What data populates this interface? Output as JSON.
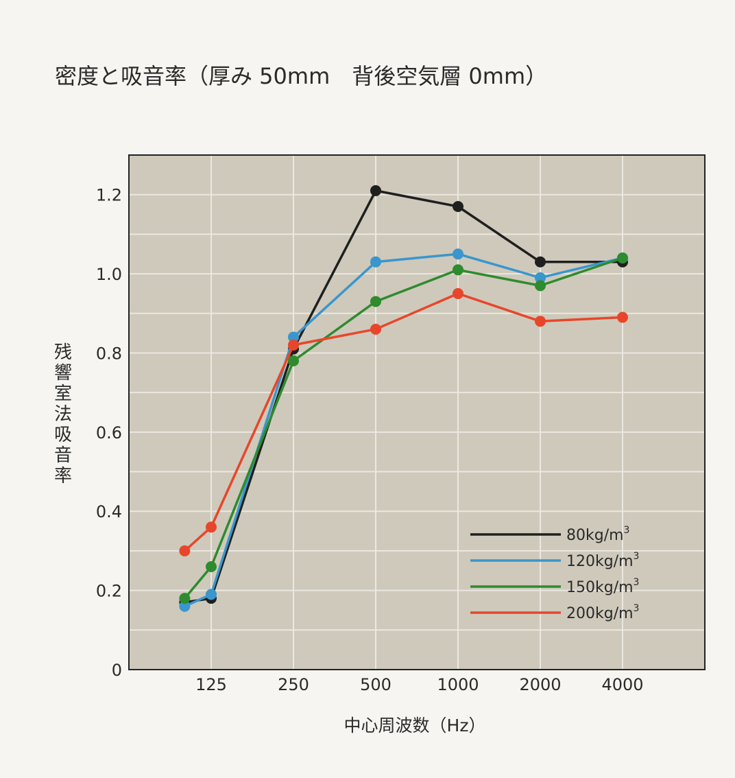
{
  "chart_data": {
    "type": "line",
    "title": "密度と吸音率（厚み 50mm　背後空気層 0mm）",
    "xlabel": "中心周波数（Hz）",
    "ylabel": "残響室法吸音率",
    "categories": [
      "125",
      "250",
      "500",
      "1000",
      "2000",
      "4000"
    ],
    "ylim": [
      0,
      1.3
    ],
    "yticks": [
      "0",
      "0.2",
      "0.4",
      "0.6",
      "0.8",
      "1.0",
      "1.2"
    ],
    "grid": true,
    "legend_position": "bottom-right",
    "series": [
      {
        "name": "80kg/m³",
        "name_base": "80kg/m",
        "name_sup": "3",
        "color": "#1f1f1f",
        "points": [
          {
            "x": "100",
            "y": 0.17
          },
          {
            "x": "125",
            "y": 0.18
          },
          {
            "x": "250",
            "y": 0.81
          },
          {
            "x": "500",
            "y": 1.21
          },
          {
            "x": "1000",
            "y": 1.17
          },
          {
            "x": "2000",
            "y": 1.03
          },
          {
            "x": "4000",
            "y": 1.03
          }
        ]
      },
      {
        "name": "120kg/m³",
        "name_base": "120kg/m",
        "name_sup": "3",
        "color": "#3a96cc",
        "points": [
          {
            "x": "100",
            "y": 0.16
          },
          {
            "x": "125",
            "y": 0.19
          },
          {
            "x": "250",
            "y": 0.84
          },
          {
            "x": "500",
            "y": 1.03
          },
          {
            "x": "1000",
            "y": 1.05
          },
          {
            "x": "2000",
            "y": 0.99
          },
          {
            "x": "4000",
            "y": 1.04
          }
        ]
      },
      {
        "name": "150kg/m³",
        "name_base": "150kg/m",
        "name_sup": "3",
        "color": "#2e8b2e",
        "points": [
          {
            "x": "100",
            "y": 0.18
          },
          {
            "x": "125",
            "y": 0.26
          },
          {
            "x": "250",
            "y": 0.78
          },
          {
            "x": "500",
            "y": 0.93
          },
          {
            "x": "1000",
            "y": 1.01
          },
          {
            "x": "2000",
            "y": 0.97
          },
          {
            "x": "4000",
            "y": 1.04
          }
        ]
      },
      {
        "name": "200kg/m³",
        "name_base": "200kg/m",
        "name_sup": "3",
        "color": "#e8462a",
        "points": [
          {
            "x": "100",
            "y": 0.3
          },
          {
            "x": "125",
            "y": 0.36
          },
          {
            "x": "250",
            "y": 0.82
          },
          {
            "x": "500",
            "y": 0.86
          },
          {
            "x": "1000",
            "y": 0.95
          },
          {
            "x": "2000",
            "y": 0.88
          },
          {
            "x": "4000",
            "y": 0.89
          }
        ]
      }
    ]
  },
  "colors": {
    "plot_background": "#cec9bb",
    "grid": "#ebe8e0",
    "frame": "#222222"
  }
}
